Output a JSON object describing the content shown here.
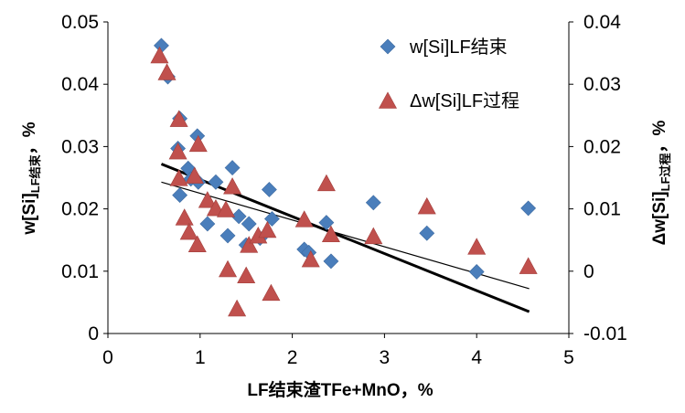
{
  "chart_data": {
    "type": "scatter",
    "xlabel": "LF结束渣TFe+MnO，%",
    "ylabel_left": {
      "main": "w[Si]",
      "sub": "LF结束",
      "suffix": "，%"
    },
    "ylabel_right": {
      "main": "Δw[Si]",
      "sub": "LF过程",
      "suffix": "，%"
    },
    "xlim": [
      0,
      5
    ],
    "ylim_left": [
      0,
      0.05
    ],
    "ylim_right": [
      -0.01,
      0.04
    ],
    "x_ticks": [
      "0",
      "1",
      "2",
      "3",
      "4",
      "5"
    ],
    "y_left_ticks": [
      "0",
      "0.01",
      "0.02",
      "0.03",
      "0.04",
      "0.05"
    ],
    "y_right_ticks": [
      "-0.01",
      "0",
      "0.01",
      "0.02",
      "0.03",
      "0.04"
    ],
    "grid": false,
    "legend_position": "top-right",
    "series": [
      {
        "name": "w[Si]LF结束",
        "marker": "diamond",
        "color": "#4a7ebb",
        "axis": "left",
        "trendline": {
          "x": [
            0.58,
            4.57
          ],
          "y": [
            0.0243,
            0.0072
          ],
          "color": "#000000",
          "width": "thin"
        },
        "points": [
          [
            0.58,
            0.0462
          ],
          [
            0.65,
            0.0412
          ],
          [
            0.78,
            0.0345
          ],
          [
            0.76,
            0.0297
          ],
          [
            0.78,
            0.0222
          ],
          [
            0.87,
            0.0265
          ],
          [
            0.9,
            0.0248
          ],
          [
            0.97,
            0.0317
          ],
          [
            0.98,
            0.0243
          ],
          [
            1.08,
            0.0176
          ],
          [
            1.17,
            0.0243
          ],
          [
            1.3,
            0.0157
          ],
          [
            1.35,
            0.0266
          ],
          [
            1.42,
            0.0188
          ],
          [
            1.5,
            0.0142
          ],
          [
            1.53,
            0.0176
          ],
          [
            1.65,
            0.0153
          ],
          [
            1.75,
            0.0231
          ],
          [
            1.78,
            0.0184
          ],
          [
            2.13,
            0.0135
          ],
          [
            2.18,
            0.013
          ],
          [
            2.37,
            0.0178
          ],
          [
            2.42,
            0.0116
          ],
          [
            2.88,
            0.021
          ],
          [
            3.46,
            0.0161
          ],
          [
            4.0,
            0.0099
          ],
          [
            4.56,
            0.0201
          ]
        ]
      },
      {
        "name": "Δw[Si]LF过程",
        "marker": "triangle",
        "color": "#c0504d",
        "axis": "right",
        "trendline": {
          "x": [
            0.58,
            4.57
          ],
          "y": [
            0.0172,
            -0.0065
          ],
          "color": "#000000",
          "width": "thick"
        },
        "points": [
          [
            0.56,
            0.0345
          ],
          [
            0.64,
            0.0318
          ],
          [
            0.77,
            0.0243
          ],
          [
            0.76,
            0.0191
          ],
          [
            0.77,
            0.0148
          ],
          [
            0.83,
            0.0085
          ],
          [
            0.88,
            0.0062
          ],
          [
            0.94,
            0.0152
          ],
          [
            0.98,
            0.0203
          ],
          [
            0.97,
            0.0042
          ],
          [
            1.08,
            0.0113
          ],
          [
            1.17,
            0.01
          ],
          [
            1.28,
            0.0098
          ],
          [
            1.3,
            0.0002
          ],
          [
            1.35,
            0.0135
          ],
          [
            1.4,
            -0.0061
          ],
          [
            1.5,
            -0.0008
          ],
          [
            1.53,
            0.0041
          ],
          [
            1.63,
            0.0056
          ],
          [
            1.73,
            0.0065
          ],
          [
            1.77,
            -0.0036
          ],
          [
            2.13,
            0.0082
          ],
          [
            2.2,
            0.0018
          ],
          [
            2.37,
            0.014
          ],
          [
            2.42,
            0.0058
          ],
          [
            2.88,
            0.0055
          ],
          [
            3.46,
            0.0103
          ],
          [
            4.0,
            0.0038
          ],
          [
            4.56,
            0.0007
          ]
        ]
      }
    ]
  }
}
